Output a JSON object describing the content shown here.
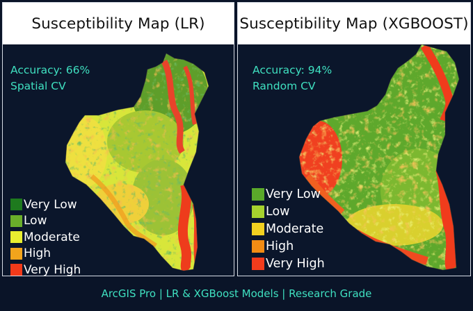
{
  "panels": [
    {
      "title": "Susceptibility Map (LR)",
      "accuracy": "Accuracy: 66%",
      "validation": "Spatial CV",
      "legend": [
        {
          "label": "Very Low",
          "color": "#1e7a1e"
        },
        {
          "label": "Low",
          "color": "#6aae2a"
        },
        {
          "label": "Moderate",
          "color": "#e8ee30"
        },
        {
          "label": "High",
          "color": "#f2a41c"
        },
        {
          "label": "Very High",
          "color": "#f23a1a"
        }
      ]
    },
    {
      "title": "Susceptibility Map (XGBOOST)",
      "accuracy": "Accuracy: 94%",
      "validation": "Random CV",
      "legend": [
        {
          "label": "Very Low",
          "color": "#5aa82a"
        },
        {
          "label": "Low",
          "color": "#a6d22e"
        },
        {
          "label": "Moderate",
          "color": "#f2d020"
        },
        {
          "label": "High",
          "color": "#f28c14"
        },
        {
          "label": "Very High",
          "color": "#f23c1c"
        }
      ]
    }
  ],
  "footer": "ArcGIS Pro | LR & XGBoost Models | Research Grade"
}
